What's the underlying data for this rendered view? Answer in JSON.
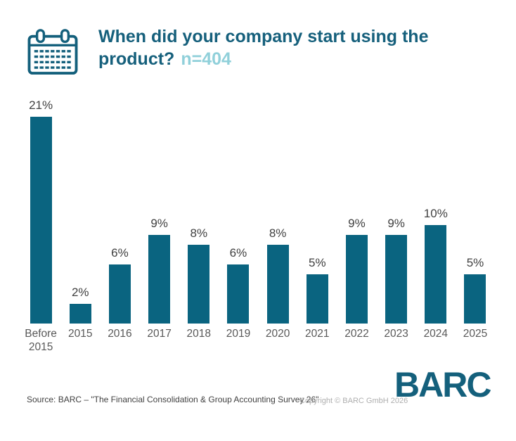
{
  "header": {
    "icon": "calendar-icon",
    "title": "When did your company start using the product?",
    "sample_label": "n=404"
  },
  "chart_data": {
    "type": "bar",
    "title": "When did your company start using the product?",
    "sample_size_label": "n=404",
    "categories": [
      "Before 2015",
      "2015",
      "2016",
      "2017",
      "2018",
      "2019",
      "2020",
      "2021",
      "2022",
      "2023",
      "2024",
      "2025"
    ],
    "values": [
      21,
      2,
      6,
      9,
      8,
      6,
      8,
      5,
      9,
      9,
      10,
      5
    ],
    "value_labels": [
      "21%",
      "2%",
      "6%",
      "9%",
      "8%",
      "6%",
      "8%",
      "5%",
      "9%",
      "9%",
      "10%",
      "5%"
    ],
    "unit": "%",
    "xlabel": "",
    "ylabel": "",
    "ylim": [
      0,
      22
    ],
    "grid": false,
    "legend": "none",
    "bar_color": "#0a6480",
    "value_label_color": "#404040",
    "axis_label_color": "#595959"
  },
  "footer": {
    "source": "Source: BARC – \"The Financial Consolidation & Group Accounting Survey 26\"",
    "copyright": "Copyright © BARC GmbH 2026",
    "logo_text": "BARC"
  },
  "colors": {
    "title_teal": "#16607c",
    "accent_light_teal": "#90d0da",
    "bar_teal": "#0a6480",
    "logo_teal": "#14607c",
    "background": "#ffffff"
  }
}
